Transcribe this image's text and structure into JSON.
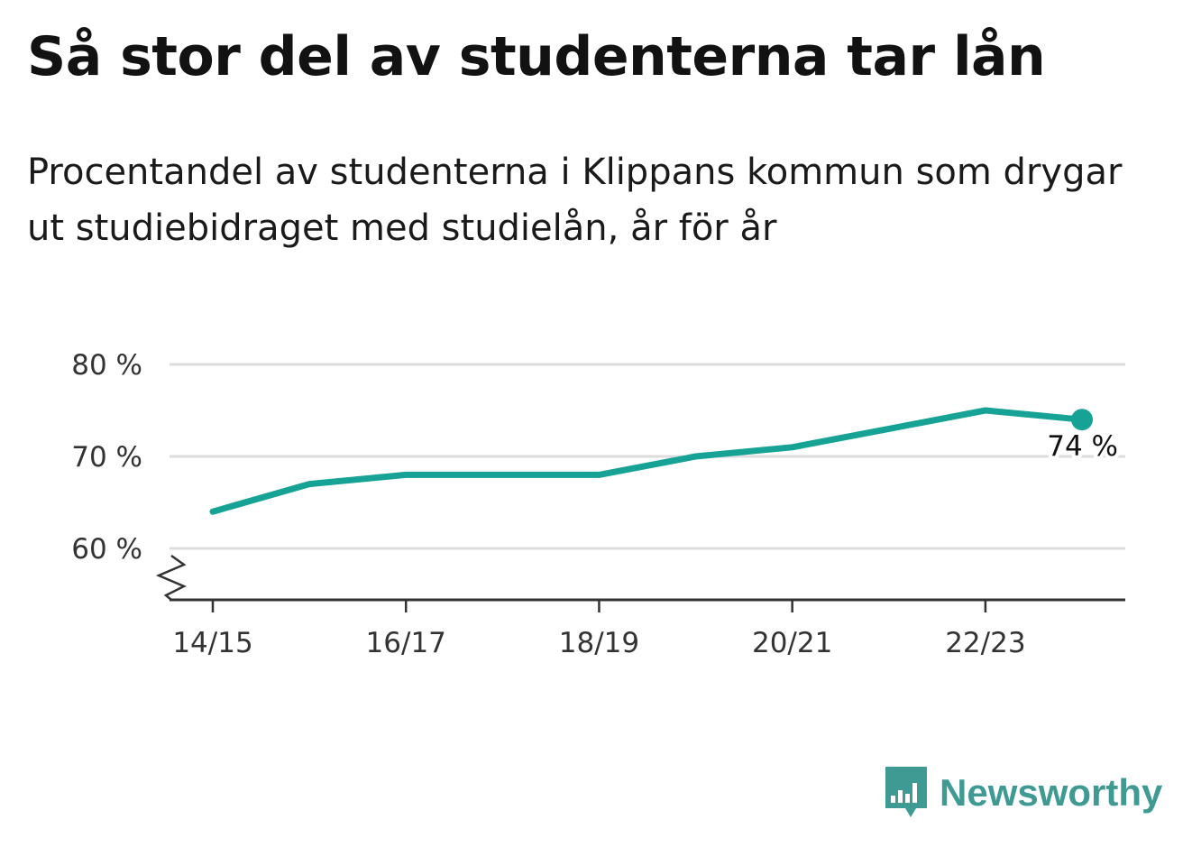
{
  "header": {
    "title": "Så stor del av studenterna tar lån",
    "subtitle": "Procentandel av studenterna i Klippans kommun som drygar ut studiebidraget med studielån, år för år"
  },
  "brand": {
    "name": "Newsworthy",
    "logo_icon": "bar-chart-speech-bubble-icon"
  },
  "colors": {
    "line": "#16a396",
    "grid": "#dddddd",
    "axis": "#333333",
    "brand": "#3f9a93"
  },
  "chart_data": {
    "type": "line",
    "title": "Så stor del av studenterna tar lån",
    "subtitle": "Procentandel av studenterna i Klippans kommun som drygar ut studiebidraget med studielån, år för år",
    "xlabel": "",
    "ylabel": "",
    "x": [
      "14/15",
      "15/16",
      "16/17",
      "17/18",
      "18/19",
      "19/20",
      "20/21",
      "21/22",
      "22/23",
      "23/24"
    ],
    "values": [
      64,
      67,
      68,
      68,
      68,
      70,
      71,
      73,
      75,
      74
    ],
    "x_ticks": [
      "14/15",
      "16/17",
      "18/19",
      "20/21",
      "22/23"
    ],
    "y_ticks": [
      60,
      70,
      80
    ],
    "y_tick_labels": [
      "60 %",
      "70 %",
      "80 %"
    ],
    "ylim": [
      55,
      80
    ],
    "y_axis_break": true,
    "grid": true,
    "legend": "none",
    "end_label": "74 %"
  }
}
